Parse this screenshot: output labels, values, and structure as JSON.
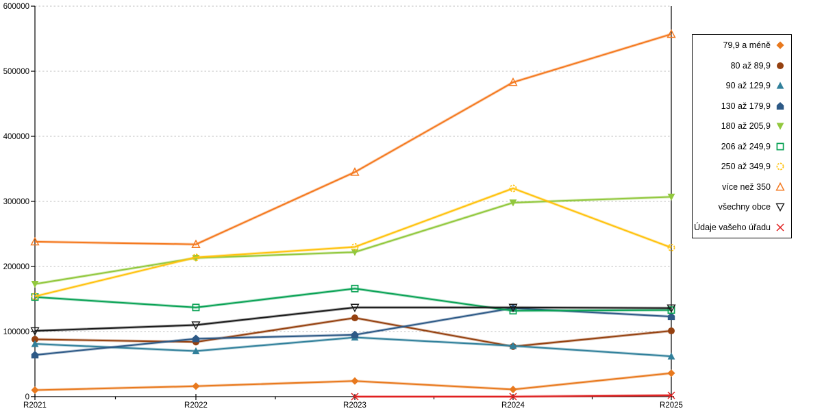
{
  "chart_data": {
    "type": "line",
    "title": "",
    "xlabel": "",
    "ylabel": "",
    "categories": [
      "R2021",
      "R2022",
      "R2023",
      "R2024",
      "R2025"
    ],
    "ylim": [
      0,
      600000
    ],
    "ytick_step": 100000,
    "ytick_labels": [
      "0",
      "100000",
      "200000",
      "300000",
      "400000",
      "500000",
      "600000"
    ],
    "grid": "horizontal-dashed",
    "legend_position": "right",
    "series": [
      {
        "name": "79,9 a méně",
        "marker": "diamond",
        "color": "#E8791E",
        "values": [
          10000,
          16000,
          24000,
          11000,
          36000
        ]
      },
      {
        "name": "80 až 89,9",
        "marker": "circle",
        "color": "#954110",
        "values": [
          88000,
          84000,
          121000,
          77000,
          101000
        ]
      },
      {
        "name": "90 až 129,9",
        "marker": "triangle-up",
        "color": "#31809B",
        "values": [
          81000,
          70000,
          91000,
          78000,
          62000
        ]
      },
      {
        "name": "130 až 179,9",
        "marker": "pentagon",
        "color": "#2D5986",
        "values": [
          64000,
          89000,
          95000,
          136000,
          123000
        ]
      },
      {
        "name": "180 až 205,9",
        "marker": "triangle-down",
        "color": "#92C83E",
        "values": [
          173000,
          213000,
          222000,
          298000,
          307000
        ]
      },
      {
        "name": "206 až 249,9",
        "marker": "square-open",
        "color": "#0AA255",
        "values": [
          153000,
          137000,
          166000,
          132000,
          133000
        ]
      },
      {
        "name": "250 až 349,9",
        "marker": "circle-open-dashed",
        "color": "#FFC20E",
        "values": [
          154000,
          214000,
          230000,
          320000,
          229000
        ]
      },
      {
        "name": "více než 350",
        "marker": "triangle-open",
        "color": "#F4791F",
        "values": [
          238000,
          234000,
          345000,
          483000,
          557000
        ]
      },
      {
        "name": "všechny obce",
        "marker": "triangle-down-open",
        "color": "#1A1A1A",
        "values": [
          101000,
          110000,
          137000,
          137000,
          136000
        ]
      },
      {
        "name": "Údaje vašeho úřadu",
        "marker": "x-mark",
        "color": "#E02020",
        "values": [
          null,
          null,
          0,
          0,
          2000
        ]
      }
    ],
    "colors": {
      "gridline": "#BFBFBF",
      "axis": "#000000",
      "background": "#FFFFFF"
    }
  }
}
